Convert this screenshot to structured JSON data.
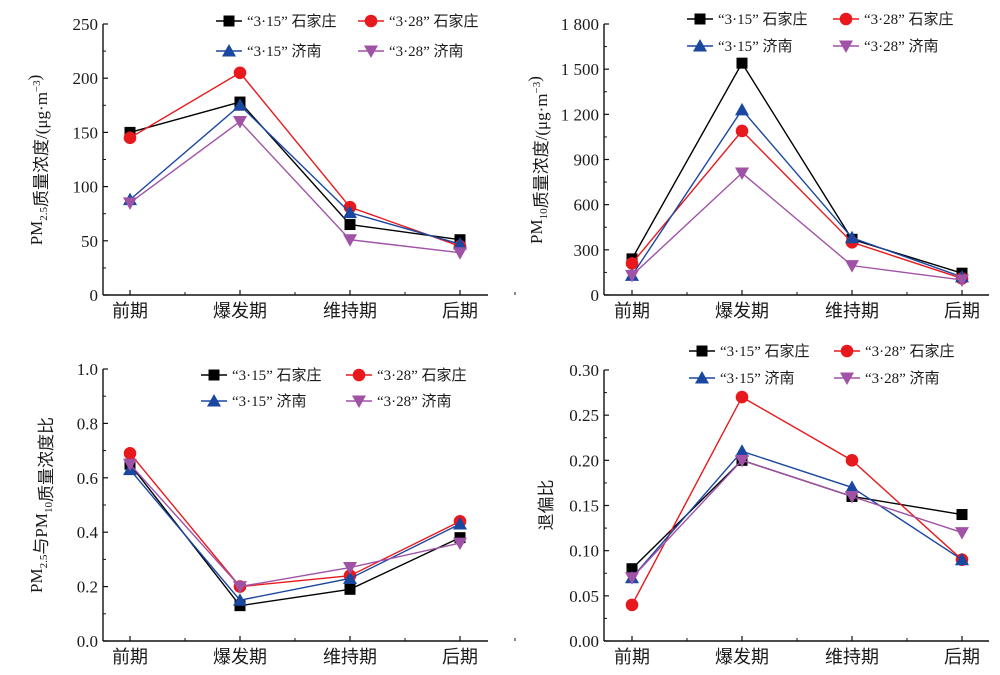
{
  "legend_labels": [
    "“3·15” 石家庄",
    "“3·28” 石家庄",
    "“3·15” 济南",
    "“3·28” 济南"
  ],
  "series_colors": [
    "#000000",
    "#e8191c",
    "#1a47a0",
    "#a052a6"
  ],
  "series_markers": [
    "square",
    "circle",
    "triangle-up",
    "triangle-down"
  ],
  "chart_data": [
    {
      "id": "pm25",
      "type": "line",
      "title": "",
      "categories": [
        "前期",
        "爆发期",
        "维持期",
        "后期"
      ],
      "ylabel_parts": [
        "PM",
        "2.5",
        "质量浓度/(μg·m",
        "−3",
        ")"
      ],
      "ylim": [
        0,
        250
      ],
      "yticks": [
        0,
        50,
        100,
        150,
        200,
        250
      ],
      "ytick_labels": [
        "0",
        "50",
        "100",
        "150",
        "200",
        "250"
      ],
      "grid": false,
      "legend_position": "top-right",
      "series": [
        {
          "name": "“3·15” 石家庄",
          "values": [
            150,
            178,
            65,
            51
          ]
        },
        {
          "name": "“3·28” 石家庄",
          "values": [
            145,
            205,
            81,
            45
          ]
        },
        {
          "name": "“3·15” 济南",
          "values": [
            88,
            175,
            76,
            47
          ]
        },
        {
          "name": "“3·28” 济南",
          "values": [
            85,
            160,
            51,
            39
          ]
        }
      ]
    },
    {
      "id": "pm10",
      "type": "line",
      "title": "",
      "categories": [
        "前期",
        "爆发期",
        "维持期",
        "后期"
      ],
      "ylabel_parts": [
        "PM",
        "10",
        "质量浓度/(μg·m",
        "−3",
        ")"
      ],
      "ylim": [
        0,
        1800
      ],
      "yticks": [
        0,
        300,
        600,
        900,
        1200,
        1500,
        1800
      ],
      "ytick_labels": [
        "0",
        "300",
        "600",
        "900",
        "1 200",
        "1 500",
        "1 800"
      ],
      "grid": false,
      "legend_position": "top-right",
      "series": [
        {
          "name": "“3·15” 石家庄",
          "values": [
            240,
            1540,
            370,
            145
          ]
        },
        {
          "name": "“3·28” 石家庄",
          "values": [
            210,
            1090,
            350,
            110
          ]
        },
        {
          "name": "“3·15” 济南",
          "values": [
            130,
            1230,
            380,
            120
          ]
        },
        {
          "name": "“3·28” 济南",
          "values": [
            130,
            810,
            195,
            100
          ]
        }
      ]
    },
    {
      "id": "ratio",
      "type": "line",
      "title": "",
      "categories": [
        "前期",
        "爆发期",
        "维持期",
        "后期"
      ],
      "ylabel_parts": [
        "PM",
        "2.5",
        "与PM",
        "10",
        "质量浓度比"
      ],
      "ylim": [
        0,
        1.0
      ],
      "yticks": [
        0,
        0.2,
        0.4,
        0.6,
        0.8,
        1.0
      ],
      "ytick_labels": [
        "0.0",
        "0.2",
        "0.4",
        "0.6",
        "0.8",
        "1.0"
      ],
      "grid": false,
      "legend_position": "top-right",
      "series": [
        {
          "name": "“3·15” 石家庄",
          "values": [
            0.65,
            0.13,
            0.19,
            0.38
          ]
        },
        {
          "name": "“3·28” 石家庄",
          "values": [
            0.69,
            0.2,
            0.24,
            0.44
          ]
        },
        {
          "name": "“3·15” 济南",
          "values": [
            0.63,
            0.15,
            0.23,
            0.43
          ]
        },
        {
          "name": "“3·28” 济南",
          "values": [
            0.65,
            0.2,
            0.27,
            0.36
          ]
        }
      ]
    },
    {
      "id": "bias",
      "type": "line",
      "title": "",
      "categories": [
        "前期",
        "爆发期",
        "维持期",
        "后期"
      ],
      "ylabel_parts": [
        "退偏比"
      ],
      "ylim": [
        0,
        0.3
      ],
      "yticks": [
        0,
        0.05,
        0.1,
        0.15,
        0.2,
        0.25,
        0.3
      ],
      "ytick_labels": [
        "0.00",
        "0.05",
        "0.10",
        "0.15",
        "0.20",
        "0.25",
        "0.30"
      ],
      "grid": false,
      "legend_position": "top-right",
      "series": [
        {
          "name": "“3·15” 石家庄",
          "values": [
            0.08,
            0.2,
            0.16,
            0.14
          ]
        },
        {
          "name": "“3·28” 石家庄",
          "values": [
            0.04,
            0.27,
            0.2,
            0.09
          ]
        },
        {
          "name": "“3·15” 济南",
          "values": [
            0.07,
            0.21,
            0.17,
            0.09
          ]
        },
        {
          "name": "“3·28” 济南",
          "values": [
            0.07,
            0.2,
            0.16,
            0.12
          ]
        }
      ]
    }
  ]
}
